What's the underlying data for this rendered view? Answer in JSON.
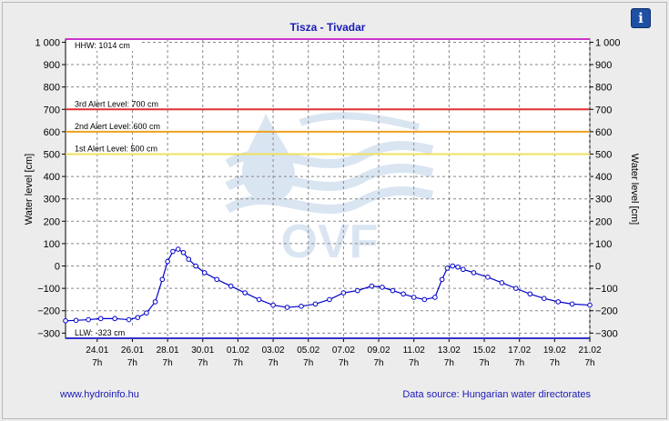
{
  "info_icon_glyph": "i",
  "footer": {
    "website": "www.hydroinfo.hu",
    "source": "Data source: Hungarian water directorates"
  },
  "colors": {
    "series": "#0000cc",
    "hhw": "#cc33cc",
    "llw": "#3333cc",
    "alert3": "#e03030",
    "alert2": "#f0a020",
    "alert1": "#f0e060",
    "accent": "#1d4fa3"
  },
  "watermark_text": "OVF",
  "chart_data": {
    "type": "line",
    "title": "Tisza - Tivadar",
    "ylabel_left": "Water level [cm]",
    "ylabel_right": "Water level [cm]",
    "ylim": [
      -323,
      1014
    ],
    "yticks": [
      -300,
      -200,
      -100,
      0,
      100,
      200,
      300,
      400,
      500,
      600,
      700,
      800,
      900,
      1000
    ],
    "ytick_labels": [
      "−300",
      "−200",
      "−100",
      "0",
      "100",
      "200",
      "300",
      "400",
      "500",
      "600",
      "700",
      "800",
      "900",
      "1 000"
    ],
    "xticks": [
      {
        "date": "24.01",
        "time": "7h",
        "day": 1
      },
      {
        "date": "26.01",
        "time": "7h",
        "day": 3
      },
      {
        "date": "28.01",
        "time": "7h",
        "day": 5
      },
      {
        "date": "30.01",
        "time": "7h",
        "day": 7
      },
      {
        "date": "01.02",
        "time": "7h",
        "day": 9
      },
      {
        "date": "03.02",
        "time": "7h",
        "day": 11
      },
      {
        "date": "05.02",
        "time": "7h",
        "day": 13
      },
      {
        "date": "07.02",
        "time": "7h",
        "day": 15
      },
      {
        "date": "09.02",
        "time": "7h",
        "day": 17
      },
      {
        "date": "11.02",
        "time": "7h",
        "day": 19
      },
      {
        "date": "13.02",
        "time": "7h",
        "day": 21
      },
      {
        "date": "15.02",
        "time": "7h",
        "day": 23
      },
      {
        "date": "17.02",
        "time": "7h",
        "day": 25
      },
      {
        "date": "19.02",
        "time": "7h",
        "day": 27
      },
      {
        "date": "21.02",
        "time": "7h",
        "day": 29
      }
    ],
    "xlim": [
      -0.8,
      29.0
    ],
    "reference_lines": [
      {
        "label": "HHW: 1014 cm",
        "value": 1014,
        "color": "#cc33cc"
      },
      {
        "label": "3rd Alert Level: 700 cm",
        "value": 700,
        "color": "#e03030"
      },
      {
        "label": "2nd Alert Level: 600 cm",
        "value": 600,
        "color": "#f0a020"
      },
      {
        "label": "1st Alert Level: 500 cm",
        "value": 500,
        "color": "#f0e060"
      },
      {
        "label": "LLW: -323 cm",
        "value": -323,
        "color": "#3333cc"
      }
    ],
    "series": [
      {
        "values_x": [
          -0.8,
          -0.2,
          0.5,
          1.2,
          2.0,
          2.8,
          3.3,
          3.8,
          4.3,
          4.7,
          5.0,
          5.3,
          5.6,
          5.9,
          6.2,
          6.6,
          7.1,
          7.8,
          8.6,
          9.4,
          10.2,
          11.0,
          11.8,
          12.6,
          13.4,
          14.2,
          15.0,
          15.8,
          16.6,
          17.2,
          17.8,
          18.4,
          19.0,
          19.6,
          20.2,
          20.6,
          20.9,
          21.2,
          21.5,
          21.8,
          22.4,
          23.2,
          24.0,
          24.8,
          25.6,
          26.4,
          27.2,
          28.0,
          29.0
        ],
        "values_y": [
          -245,
          -243,
          -240,
          -235,
          -235,
          -240,
          -230,
          -210,
          -160,
          -60,
          20,
          65,
          75,
          60,
          30,
          0,
          -30,
          -60,
          -90,
          -120,
          -150,
          -175,
          -185,
          -180,
          -170,
          -150,
          -120,
          -110,
          -90,
          -95,
          -110,
          -125,
          -140,
          -150,
          -140,
          -60,
          -10,
          0,
          -5,
          -15,
          -30,
          -50,
          -75,
          -100,
          -125,
          -145,
          -160,
          -170,
          -175
        ]
      }
    ]
  }
}
